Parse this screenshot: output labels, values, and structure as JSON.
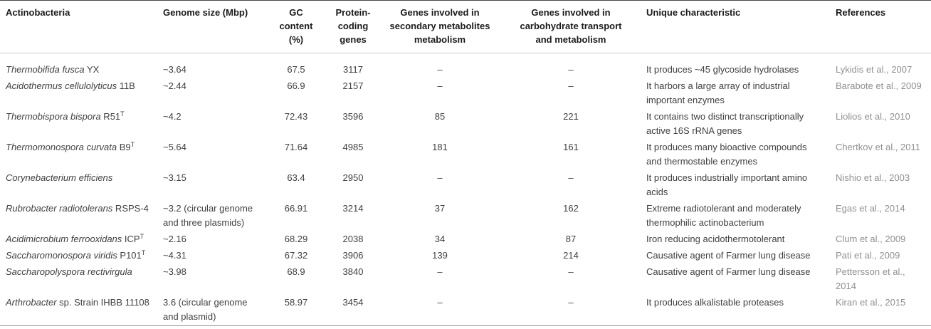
{
  "table": {
    "columns": [
      {
        "label": "Actinobacteria"
      },
      {
        "label": "Genome size (Mbp)"
      },
      {
        "label": "GC\ncontent\n(%)"
      },
      {
        "label": "Protein-\ncoding\ngenes"
      },
      {
        "label": "Genes involved in\nsecondary metabolites\nmetabolism"
      },
      {
        "label": "Genes involved in\ncarbohydrate transport\nand metabolism"
      },
      {
        "label": "Unique characteristic"
      },
      {
        "label": "References"
      }
    ],
    "rows": [
      {
        "organism_italic": "Thermobifida fusca",
        "organism_roman": "YX",
        "organism_sup": "",
        "genome_size": "~3.64",
        "gc_content": "67.5",
        "protein_coding_genes": "3117",
        "secondary_metabolite_genes": "–",
        "carbohydrate_genes": "–",
        "unique_characteristic": "It produces ~45 glycoside hydrolases",
        "reference": "Lykidis et al., 2007"
      },
      {
        "organism_italic": "Acidothermus cellulolyticus",
        "organism_roman": "11B",
        "organism_sup": "",
        "genome_size": "~2.44",
        "gc_content": "66.9",
        "protein_coding_genes": "2157",
        "secondary_metabolite_genes": "–",
        "carbohydrate_genes": "–",
        "unique_characteristic": "It harbors a large array of industrial important enzymes",
        "reference": "Barabote et al., 2009"
      },
      {
        "organism_italic": "Thermobispora bispora",
        "organism_roman": "R51",
        "organism_sup": "T",
        "genome_size": "~4.2",
        "gc_content": "72.43",
        "protein_coding_genes": "3596",
        "secondary_metabolite_genes": "85",
        "carbohydrate_genes": "221",
        "unique_characteristic": "It contains two distinct transcriptionally active 16S rRNA genes",
        "reference": "Liolios et al., 2010"
      },
      {
        "organism_italic": "Thermomonospora curvata",
        "organism_roman": "B9",
        "organism_sup": "T",
        "genome_size": "~5.64",
        "gc_content": "71.64",
        "protein_coding_genes": "4985",
        "secondary_metabolite_genes": "181",
        "carbohydrate_genes": "161",
        "unique_characteristic": "It produces many bioactive compounds and thermostable enzymes",
        "reference": "Chertkov et al., 2011"
      },
      {
        "organism_italic": "Corynebacterium efficiens",
        "organism_roman": "",
        "organism_sup": "",
        "genome_size": "~3.15",
        "gc_content": "63.4",
        "protein_coding_genes": "2950",
        "secondary_metabolite_genes": "–",
        "carbohydrate_genes": "–",
        "unique_characteristic": "It produces industrially important amino acids",
        "reference": "Nishio et al., 2003"
      },
      {
        "organism_italic": "Rubrobacter radiotolerans",
        "organism_roman": "RSPS-4",
        "organism_sup": "",
        "genome_size": "~3.2 (circular genome and three plasmids)",
        "gc_content": "66.91",
        "protein_coding_genes": "3214",
        "secondary_metabolite_genes": "37",
        "carbohydrate_genes": "162",
        "unique_characteristic": "Extreme radiotolerant and moderately thermophilic actinobacterium",
        "reference": "Egas et al., 2014"
      },
      {
        "organism_italic": "Acidimicrobium ferrooxidans",
        "organism_roman": "ICP",
        "organism_sup": "T",
        "genome_size": "~2.16",
        "gc_content": "68.29",
        "protein_coding_genes": "2038",
        "secondary_metabolite_genes": "34",
        "carbohydrate_genes": "87",
        "unique_characteristic": "Iron reducing acidothermotolerant",
        "reference": "Clum et al., 2009"
      },
      {
        "organism_italic": "Saccharomonospora viridis",
        "organism_roman": "P101",
        "organism_sup": "T",
        "genome_size": "~4.31",
        "gc_content": "67.32",
        "protein_coding_genes": "3906",
        "secondary_metabolite_genes": "139",
        "carbohydrate_genes": "214",
        "unique_characteristic": "Causative agent of Farmer lung disease",
        "reference": "Pati et al., 2009"
      },
      {
        "organism_italic": "Saccharopolyspora rectivirgula",
        "organism_roman": "",
        "organism_sup": "",
        "genome_size": "~3.98",
        "gc_content": "68.9",
        "protein_coding_genes": "3840",
        "secondary_metabolite_genes": "–",
        "carbohydrate_genes": "–",
        "unique_characteristic": "Causative agent of Farmer lung disease",
        "reference": "Pettersson et al., 2014"
      },
      {
        "organism_italic": "Arthrobacter",
        "organism_roman": "sp. Strain IHBB 11108",
        "organism_sup": "",
        "genome_size": "3.6 (circular genome and plasmid)",
        "gc_content": "58.97",
        "protein_coding_genes": "3454",
        "secondary_metabolite_genes": "–",
        "carbohydrate_genes": "–",
        "unique_characteristic": "It produces alkalistable proteases",
        "reference": "Kiran et al., 2015"
      }
    ]
  },
  "colors": {
    "header_text": "#1a1a1a",
    "body_text": "#404040",
    "reference_text": "#909090",
    "rule_top": "#474747",
    "rule_header_bottom": "#c8c8c8",
    "rule_bottom": "#8f8f8f"
  }
}
